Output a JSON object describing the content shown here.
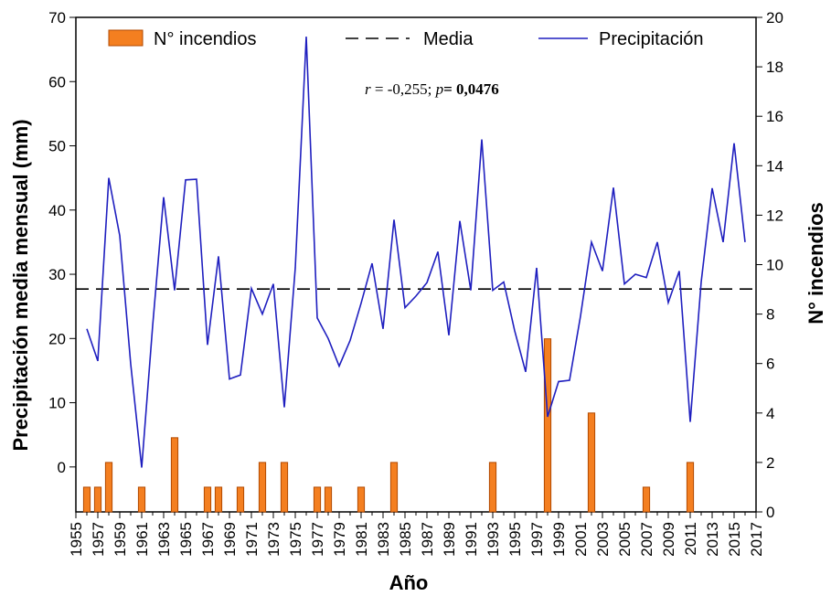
{
  "chart_data": {
    "type": "bar+line",
    "xlabel": "Año",
    "ylabel_left": "Precipitación media mensual (mm)",
    "ylabel_right": "N° incendios",
    "x_range": [
      1955,
      2017
    ],
    "x_ticks": [
      "1955",
      "1957",
      "1959",
      "1961",
      "1963",
      "1965",
      "1967",
      "1969",
      "1971",
      "1973",
      "1975",
      "1977",
      "1979",
      "1981",
      "1983",
      "1985",
      "1987",
      "1989",
      "1991",
      "1993",
      "1995",
      "1997",
      "1999",
      "2001",
      "2003",
      "2005",
      "2007",
      "2009",
      "2011",
      "2013",
      "2015",
      "2017"
    ],
    "ylim_left": [
      -7,
      70
    ],
    "y_ticks_left": [
      0,
      10,
      20,
      30,
      40,
      50,
      60,
      70
    ],
    "ylim_right": [
      0,
      20
    ],
    "y_ticks_right": [
      0,
      2,
      4,
      6,
      8,
      10,
      12,
      14,
      16,
      18,
      20
    ],
    "legend": {
      "position": "top",
      "bars_label": "N° incendios",
      "mean_label": "Media",
      "line_label": "Precipitación"
    },
    "annotation": {
      "r_label": "r",
      "r_value": " = -0,255; ",
      "p_label": "p",
      "p_value": "= 0,0476"
    },
    "mean_value": 27.7,
    "series": [
      {
        "name": "Precipitación",
        "axis": "left",
        "color": "#1f1fbf",
        "x": [
          1956,
          1957,
          1958,
          1959,
          1960,
          1961,
          1962,
          1963,
          1964,
          1965,
          1966,
          1967,
          1968,
          1969,
          1970,
          1971,
          1972,
          1973,
          1974,
          1975,
          1976,
          1977,
          1978,
          1979,
          1980,
          1981,
          1982,
          1983,
          1984,
          1985,
          1986,
          1987,
          1988,
          1989,
          1990,
          1991,
          1992,
          1993,
          1994,
          1995,
          1996,
          1997,
          1998,
          1999,
          2000,
          2001,
          2002,
          2003,
          2004,
          2005,
          2006,
          2007,
          2008,
          2009,
          2010,
          2011,
          2012,
          2013,
          2014,
          2015,
          2016
        ],
        "y": [
          21.5,
          16.5,
          45,
          36,
          16,
          -0.1,
          22,
          42,
          27.5,
          44.7,
          44.8,
          19,
          32.8,
          13.7,
          14.3,
          27.8,
          23.8,
          28.5,
          9.3,
          31,
          67,
          23.2,
          20,
          15.7,
          19.7,
          25.5,
          31.7,
          21.5,
          38.5,
          24.8,
          26.6,
          28.7,
          33.5,
          20.5,
          38.3,
          27.5,
          51,
          27.5,
          28.8,
          21.2,
          14.8,
          31,
          7.8,
          13.3,
          13.5,
          23.5,
          35,
          30.5,
          43.5,
          28.5,
          30,
          29.5,
          35,
          25.6,
          30.5,
          7,
          28.8,
          43.4,
          35,
          50.4,
          35
        ]
      },
      {
        "name": "N° incendios",
        "axis": "right",
        "color": "#f47f20",
        "x": [
          1956,
          1957,
          1958,
          1961,
          1964,
          1967,
          1968,
          1970,
          1972,
          1974,
          1977,
          1978,
          1981,
          1984,
          1993,
          1998,
          2002,
          2007,
          2011
        ],
        "y": [
          1,
          1,
          2,
          1,
          3,
          1,
          1,
          1,
          2,
          2,
          1,
          1,
          1,
          2,
          2,
          7,
          4,
          1,
          2
        ]
      }
    ]
  }
}
